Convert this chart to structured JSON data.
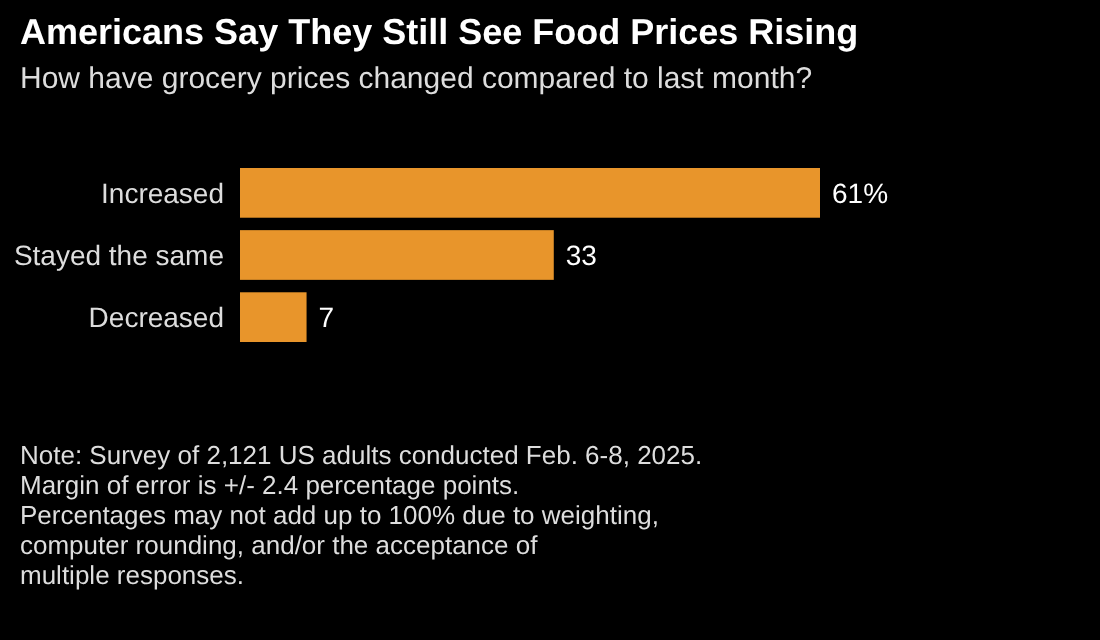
{
  "chart_data": {
    "type": "bar",
    "orientation": "horizontal",
    "title": "Americans Say They Still See Food Prices Rising",
    "subtitle": "How have grocery prices changed compared to last month?",
    "categories": [
      "Increased",
      "Stayed the same",
      "Decreased"
    ],
    "values": [
      61,
      33,
      7
    ],
    "color": "#e8952b",
    "value_labels": [
      "61%",
      "33",
      "7"
    ],
    "annotations": [
      "Note: Survey of 2,121 US adults conducted Feb. 6-8, 2025.",
      "Margin of error is +/- 2.4 percentage points.",
      "Percentages may not add up to 100% due to weighting,",
      "computer rounding, and/or the acceptance of",
      "multiple responses."
    ]
  }
}
